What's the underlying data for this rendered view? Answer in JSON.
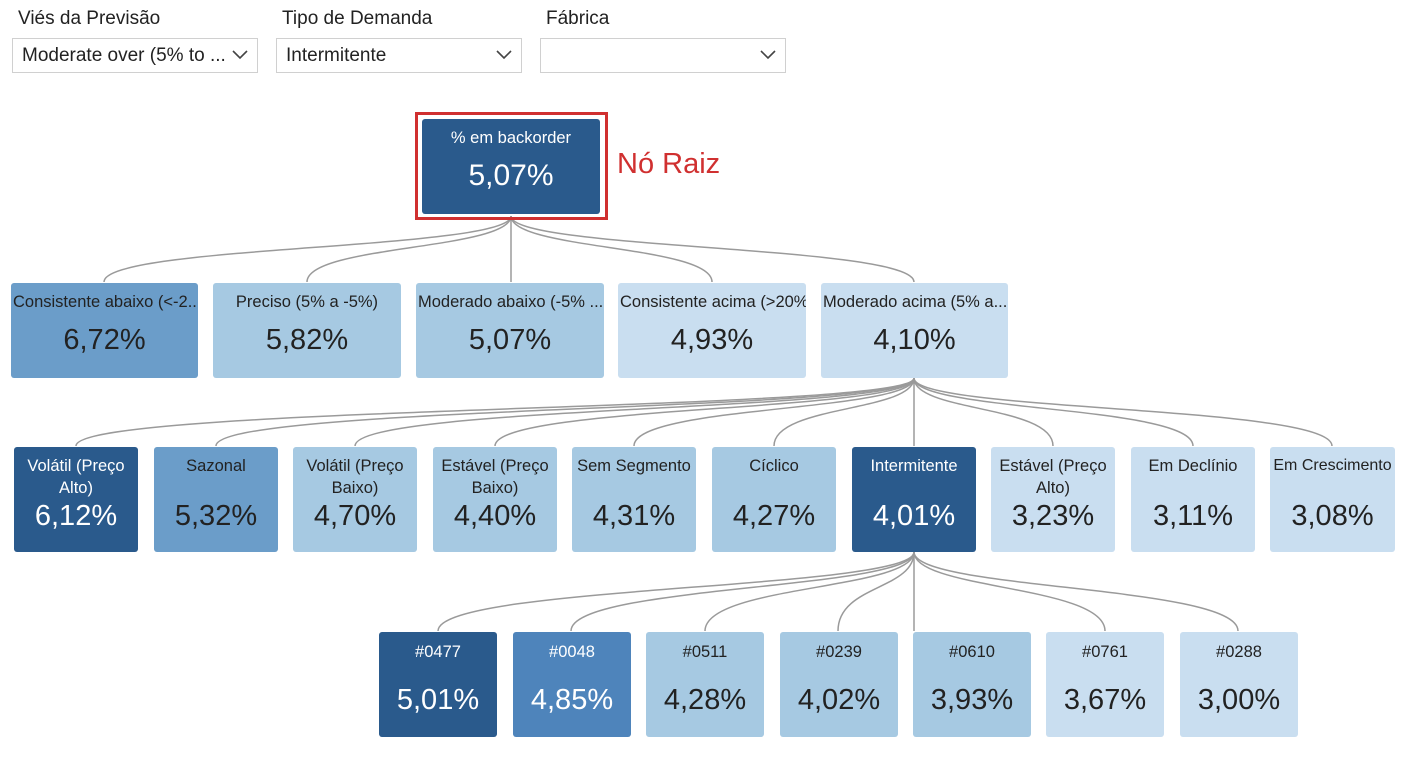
{
  "filters": [
    {
      "label": "Viés da Previsão",
      "value": "Moderate over (5% to ..."
    },
    {
      "label": "Tipo de Demanda",
      "value": "Intermitente"
    },
    {
      "label": "Fábrica",
      "value": ""
    }
  ],
  "root": {
    "label": "% em backorder",
    "value": "5,07%",
    "annotation": "Nó Raiz"
  },
  "level1": [
    {
      "label": "Consistente abaixo (<-2...",
      "value": "6,72%"
    },
    {
      "label": "Preciso (5% a -5%)",
      "value": "5,82%"
    },
    {
      "label": "Moderado abaixo (-5% ...",
      "value": "5,07%"
    },
    {
      "label": "Consistente acima (>20%)",
      "value": "4,93%"
    },
    {
      "label": "Moderado acima (5% a...",
      "value": "4,10%"
    }
  ],
  "level2": [
    {
      "label": "Volátil (Preço Alto)",
      "value": "6,12%"
    },
    {
      "label": "Sazonal",
      "value": "5,32%"
    },
    {
      "label": "Volátil (Preço Baixo)",
      "value": "4,70%"
    },
    {
      "label": "Estável (Preço Baixo)",
      "value": "4,40%"
    },
    {
      "label": "Sem Segmento",
      "value": "4,31%"
    },
    {
      "label": "Cíclico",
      "value": "4,27%"
    },
    {
      "label": "Intermitente",
      "value": "4,01%"
    },
    {
      "label": "Estável (Preço Alto)",
      "value": "3,23%"
    },
    {
      "label": "Em Declínio",
      "value": "3,11%"
    },
    {
      "label": "Em Crescimento",
      "value": "3,08%"
    }
  ],
  "level3": [
    {
      "label": "#0477",
      "value": "5,01%"
    },
    {
      "label": "#0048",
      "value": "4,85%"
    },
    {
      "label": "#0511",
      "value": "4,28%"
    },
    {
      "label": "#0239",
      "value": "4,02%"
    },
    {
      "label": "#0610",
      "value": "3,93%"
    },
    {
      "label": "#0761",
      "value": "3,67%"
    },
    {
      "label": "#0288",
      "value": "3,00%"
    }
  ]
}
